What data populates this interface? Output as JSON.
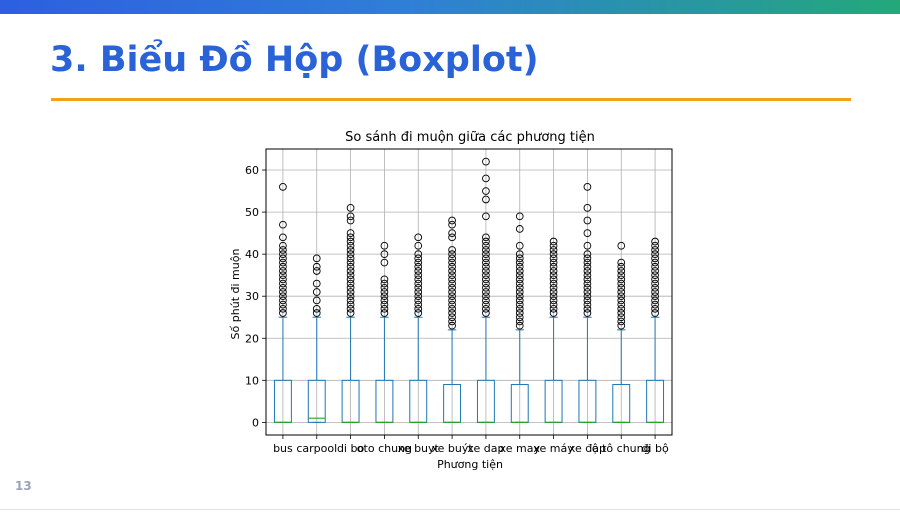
{
  "slide": {
    "title": "3. Biểu Đồ Hộp (Boxplot)",
    "page_number": "13",
    "colors": {
      "title": "#2a62d8",
      "rule": "#f2a21a",
      "box": "#1f77b4",
      "median": "#2ca02c"
    }
  },
  "chart_data": {
    "type": "boxplot",
    "title": "So sánh đi muộn giữa các phương tiện",
    "xlabel": "Phương tiện",
    "ylabel": "Số phút đi muộn",
    "ylim": [
      -3,
      65
    ],
    "yticks": [
      0,
      10,
      20,
      30,
      40,
      50,
      60
    ],
    "grid": true,
    "categories": [
      "bus",
      "carpool",
      "di bo",
      "oto chung",
      "xe buyt",
      "xe buýt",
      "xe dap",
      "xe may",
      "xe máy",
      "xe đạp",
      "ô tô chung",
      "đi bộ"
    ],
    "boxes": [
      {
        "q1": 0,
        "median": 0,
        "q3": 10,
        "whisker_low": 0,
        "whisker_high": 25,
        "fliers": [
          26,
          27,
          28,
          29,
          30,
          31,
          32,
          33,
          34,
          35,
          36,
          37,
          38,
          39,
          40,
          41,
          42,
          44,
          47,
          56
        ]
      },
      {
        "q1": 0,
        "median": 1,
        "q3": 10,
        "whisker_low": 0,
        "whisker_high": 25,
        "fliers": [
          26,
          27,
          29,
          31,
          33,
          36,
          37,
          39
        ]
      },
      {
        "q1": 0,
        "median": 0,
        "q3": 10,
        "whisker_low": 0,
        "whisker_high": 25,
        "fliers": [
          26,
          27,
          28,
          29,
          30,
          31,
          32,
          33,
          34,
          35,
          36,
          37,
          38,
          39,
          40,
          41,
          42,
          43,
          44,
          45,
          48,
          49,
          51
        ]
      },
      {
        "q1": 0,
        "median": 0,
        "q3": 10,
        "whisker_low": 0,
        "whisker_high": 25,
        "fliers": [
          26,
          27,
          28,
          29,
          30,
          31,
          32,
          33,
          34,
          38,
          40,
          42
        ]
      },
      {
        "q1": 0,
        "median": 0,
        "q3": 10,
        "whisker_low": 0,
        "whisker_high": 25,
        "fliers": [
          26,
          27,
          28,
          29,
          30,
          31,
          32,
          33,
          34,
          35,
          36,
          37,
          38,
          39,
          40,
          42,
          44
        ]
      },
      {
        "q1": 0,
        "median": 0,
        "q3": 9,
        "whisker_low": 0,
        "whisker_high": 22,
        "fliers": [
          23,
          24,
          25,
          26,
          27,
          28,
          29,
          30,
          31,
          32,
          33,
          34,
          35,
          36,
          37,
          38,
          39,
          40,
          41,
          44,
          45,
          47,
          48
        ]
      },
      {
        "q1": 0,
        "median": 0,
        "q3": 10,
        "whisker_low": 0,
        "whisker_high": 25,
        "fliers": [
          26,
          27,
          28,
          29,
          30,
          31,
          32,
          33,
          34,
          35,
          36,
          37,
          38,
          39,
          40,
          41,
          42,
          43,
          44,
          49,
          53,
          55,
          58,
          62
        ]
      },
      {
        "q1": 0,
        "median": 0,
        "q3": 9,
        "whisker_low": 0,
        "whisker_high": 22,
        "fliers": [
          23,
          24,
          25,
          26,
          27,
          28,
          29,
          30,
          31,
          32,
          33,
          34,
          35,
          36,
          37,
          38,
          39,
          40,
          42,
          46,
          49
        ]
      },
      {
        "q1": 0,
        "median": 0,
        "q3": 10,
        "whisker_low": 0,
        "whisker_high": 25,
        "fliers": [
          26,
          27,
          28,
          29,
          30,
          31,
          32,
          33,
          34,
          35,
          36,
          37,
          38,
          39,
          40,
          41,
          42,
          43
        ]
      },
      {
        "q1": 0,
        "median": 0,
        "q3": 10,
        "whisker_low": 0,
        "whisker_high": 25,
        "fliers": [
          26,
          27,
          28,
          29,
          30,
          31,
          32,
          33,
          34,
          35,
          36,
          37,
          38,
          39,
          40,
          42,
          45,
          48,
          51,
          56
        ]
      },
      {
        "q1": 0,
        "median": 0,
        "q3": 9,
        "whisker_low": 0,
        "whisker_high": 22,
        "fliers": [
          23,
          24,
          25,
          26,
          27,
          28,
          29,
          30,
          31,
          32,
          33,
          34,
          35,
          36,
          37,
          38,
          42
        ]
      },
      {
        "q1": 0,
        "median": 0,
        "q3": 10,
        "whisker_low": 0,
        "whisker_high": 25,
        "fliers": [
          26,
          27,
          28,
          29,
          30,
          31,
          32,
          33,
          34,
          35,
          36,
          37,
          38,
          39,
          40,
          41,
          42,
          43
        ]
      }
    ]
  }
}
